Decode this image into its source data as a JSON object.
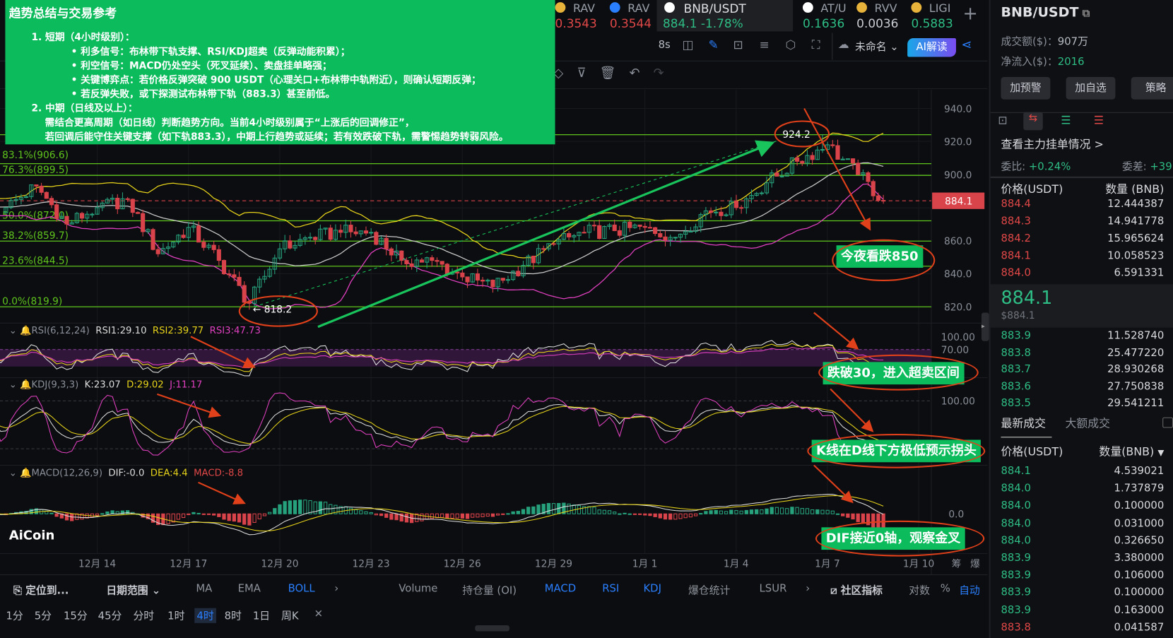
{
  "summary_box": {
    "title": "趋势总结与交易参考",
    "lines": [
      "1. 短期（4小时级别）：",
      "• 利多信号：布林带下轨支撑、RSI/KDJ超卖（反弹动能积累）；",
      "• 利空信号：MACD仍处空头（死叉延续）、卖盘挂单略强；",
      "• 关键博弈点：若价格反弹突破 900 USDT（心理关口+布林带中轨附近），则确认短期反弹；",
      "• 若反弹失败，或下探测试布林带下轨（883.3）甚至前低。",
      "2. 中期（日线及以上）：",
      "需结合更高周期（如日线）判断趋势方向。当前4小时级别属于“上涨后的回调修正”，",
      "若回调后能守住关键支撑（如下轨883.3），中期上行趋势或延续；若有效跌破下轨，需警惕趋势转弱风险。"
    ]
  },
  "tickers": [
    {
      "name": "RAV",
      "price": "0.3543",
      "color": "#e04848"
    },
    {
      "name": "RAV",
      "price": "0.3544",
      "color": "#e04848"
    },
    {
      "name": "BNB/USDT",
      "price": "884.1  -1.78%",
      "color": "#2ebd85",
      "active": true
    },
    {
      "name": "AT/U",
      "price": "0.1636",
      "color": "#2ebd85"
    },
    {
      "name": "RVV",
      "price": "0.0036",
      "color": "#c9ccd3"
    },
    {
      "name": "LIGI",
      "price": "0.5883",
      "color": "#2ebd85"
    }
  ],
  "toolbar": {
    "refresh": "8s",
    "layout_name": "未命名",
    "ai_button": "AI解读",
    "add_tab": "+"
  },
  "price_axis": {
    "ticks": [
      "940.0",
      "920.0",
      "900.0",
      "860.0",
      "840.0",
      "820.0"
    ],
    "current": "884.1"
  },
  "fib_levels": [
    {
      "label": "",
      "price": 924.1
    },
    {
      "label": "83.1%(906.6)",
      "price": 906.6
    },
    {
      "label": "76.3%(899.5)",
      "price": 899.5
    },
    {
      "label": "50.0%(872.0)",
      "price": 872.0
    },
    {
      "label": "38.2%(859.7)",
      "price": 859.7
    },
    {
      "label": "23.6%(844.5)",
      "price": 844.5
    },
    {
      "label": "0.0%(819.9)",
      "price": 819.9
    }
  ],
  "annotations": {
    "high": "924.2",
    "low": "← 818.2",
    "note_price": "今夜看跌850",
    "note_rsi": "跌破30，进入超卖区间",
    "note_kdj": "K线在D线下方极低预示拐头",
    "note_macd": "DIF接近0轴，观察金叉"
  },
  "indicators": {
    "rsi": {
      "name": "RSI(6,12,24)",
      "v1": "RSI1:29.10",
      "v2": "RSI2:39.77",
      "v3": "RSI3:47.73",
      "ticks": [
        "100.00",
        "70.00"
      ]
    },
    "kdj": {
      "name": "KDJ(9,3,3)",
      "k": "K:23.07",
      "d": "D:29.02",
      "j": "J:11.17",
      "ticks": [
        "100.00"
      ]
    },
    "macd": {
      "name": "MACD(12,26,9)",
      "dif": "DIF:-0.0",
      "dea": "DEA:4.4",
      "macd": "MACD:-8.8",
      "ticks": [
        "0.0"
      ]
    }
  },
  "logo": "AiCoin",
  "date_axis": [
    "12月 14",
    "12月 17",
    "12月 20",
    "12月 23",
    "12月 26",
    "12月 29",
    "1月 1",
    "1月 4",
    "1月 7",
    "1月 10"
  ],
  "date_axis_right": [
    "筹",
    "爆"
  ],
  "bottom_toolbar": {
    "locate": "定位到...",
    "date_range": "日期范围",
    "main_indicators": [
      "MA",
      "EMA",
      "BOLL"
    ],
    "sub_indicators": [
      "Volume",
      "持仓量 (OI)",
      "MACD",
      "RSI",
      "KDJ",
      "爆仓统计",
      "LSUR"
    ],
    "community": "社区指标",
    "log": "对数",
    "percent": "%",
    "auto": "自动"
  },
  "timeframes": [
    "1分",
    "5分",
    "15分",
    "45分",
    "分时",
    "1时",
    "4时",
    "8时",
    "1日",
    "周K"
  ],
  "active_timeframe": "4时",
  "right_panel": {
    "symbol": "BNB/USDT",
    "turnover_label": "成交额($)：",
    "turnover": "907万",
    "netflow_label": "净流入($)：",
    "netflow": "2016",
    "buttons": [
      "加预警",
      "加自选",
      "策略"
    ],
    "depth_link": "查看主力挂单情况 >",
    "ratio_label": "委比:",
    "ratio": "+0.24%",
    "diff_label": "委差:",
    "diff": "+39",
    "book_headers": [
      "价格(USDT)",
      "数量 (BNB)"
    ],
    "asks": [
      [
        "884.4",
        "12.444387"
      ],
      [
        "884.3",
        "14.941778"
      ],
      [
        "884.2",
        "15.965624"
      ],
      [
        "884.1",
        "10.058523"
      ],
      [
        "884.0",
        "6.591331"
      ]
    ],
    "last_price": "884.1",
    "last_price_usd": "$884.1",
    "bids": [
      [
        "883.9",
        "11.528740"
      ],
      [
        "883.8",
        "25.477220"
      ],
      [
        "883.7",
        "28.930268"
      ],
      [
        "883.6",
        "27.750838"
      ],
      [
        "883.5",
        "29.541211"
      ]
    ],
    "trade_tabs": [
      "最新成交",
      "大额成交"
    ],
    "trade_headers": [
      "价格(USDT)",
      "数量(BNB)"
    ],
    "trades": [
      [
        "884.1",
        "4.539021"
      ],
      [
        "884.0",
        "1.737879"
      ],
      [
        "884.0",
        "0.100000"
      ],
      [
        "884.0",
        "0.031000"
      ],
      [
        "884.0",
        "0.326650"
      ],
      [
        "883.9",
        "3.380000"
      ],
      [
        "883.9",
        "0.106000"
      ],
      [
        "883.9",
        "0.100000"
      ],
      [
        "883.9",
        "0.163000"
      ],
      [
        "883.8",
        "0.041587"
      ]
    ]
  },
  "colors": {
    "up": "#26a17b",
    "down": "#d9434a",
    "accent": "#2a7fff",
    "fib": "#5fc51d",
    "boll_upper": "#e6d21a",
    "boll_mid": "#c8c8c8",
    "boll_lower": "#e040c0"
  },
  "chart_data": {
    "type": "candlestick",
    "interval": "4h",
    "first_day": "12月 11",
    "daily_closes_approx": [
      880,
      893,
      870,
      880,
      885,
      852,
      868,
      848,
      822,
      855,
      862,
      865,
      865,
      848,
      848,
      838,
      832,
      845,
      858,
      865,
      866,
      868,
      862,
      878,
      880,
      895,
      908,
      918,
      900
    ],
    "last": 884.1,
    "high": 924.2,
    "low": 818.2,
    "overlay": "BOLL",
    "subpanes": [
      "RSI",
      "KDJ",
      "MACD"
    ],
    "ylim": [
      815,
      945
    ]
  }
}
